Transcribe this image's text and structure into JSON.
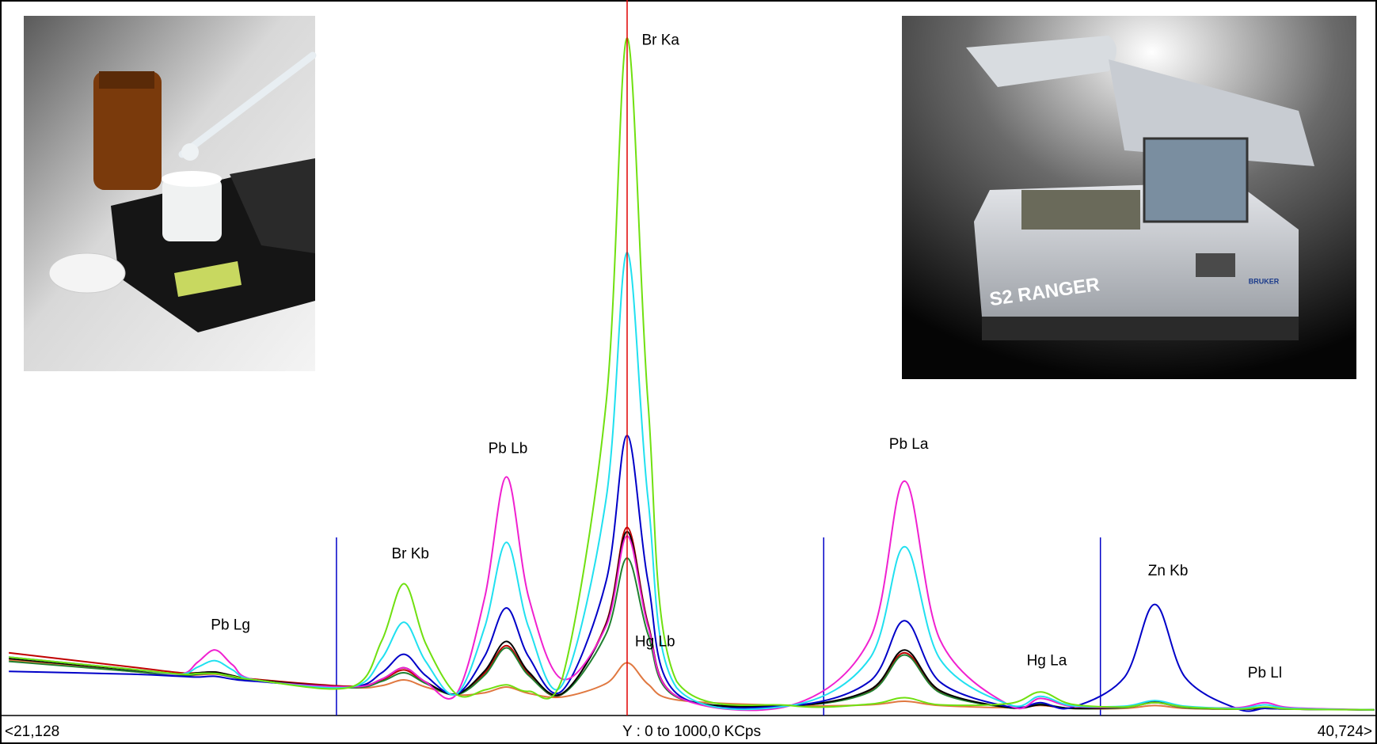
{
  "chart_data": {
    "type": "line",
    "x": [
      21.13,
      22.89,
      23.59,
      23.84,
      24.09,
      24.34,
      24.66,
      26.04,
      26.48,
      26.8,
      27.11,
      27.55,
      27.96,
      28.27,
      28.59,
      29.07,
      29.7,
      30.0,
      30.3,
      30.71,
      32.34,
      33.48,
      33.98,
      34.49,
      35.49,
      35.93,
      36.37,
      37.13,
      37.57,
      38.01,
      38.77,
      39.15,
      39.53,
      40.72
    ],
    "series": [
      {
        "color": "#e07840",
        "values": [
          78,
          62,
          56,
          57,
          58,
          54,
          49,
          39,
          42,
          50,
          40,
          29,
          32,
          40,
          31,
          26,
          45,
          74,
          44,
          22,
          14,
          15,
          20,
          14,
          11,
          14,
          10,
          10,
          14,
          10,
          9,
          11,
          9,
          8
        ]
      },
      {
        "color": "#c00000",
        "values": [
          88,
          68,
          60,
          60,
          61,
          56,
          51,
          41,
          50,
          64,
          46,
          30,
          60,
          98,
          58,
          30,
          130,
          264,
          129,
          27,
          14,
          34,
          88,
          33,
          11,
          15,
          10,
          12,
          20,
          12,
          9,
          10,
          9,
          8
        ]
      },
      {
        "color": "#208030",
        "values": [
          76,
          62,
          56,
          58,
          59,
          54,
          49,
          39,
          48,
          60,
          45,
          29,
          57,
          95,
          56,
          30,
          115,
          221,
          114,
          26,
          14,
          33,
          85,
          32,
          11,
          16,
          10,
          11,
          18,
          11,
          9,
          10,
          9,
          8
        ]
      },
      {
        "color": "#000000",
        "values": [
          80,
          64,
          58,
          60,
          61,
          56,
          50,
          40,
          51,
          67,
          47,
          30,
          63,
          104,
          61,
          31,
          128,
          258,
          127,
          27,
          14,
          36,
          92,
          35,
          11,
          15,
          10,
          12,
          20,
          12,
          9,
          10,
          9,
          8
        ]
      },
      {
        "color": "#0000c8",
        "values": [
          62,
          58,
          55,
          54,
          55,
          51,
          48,
          40,
          60,
          86,
          56,
          30,
          84,
          151,
          82,
          35,
          189,
          393,
          188,
          31,
          14,
          48,
          133,
          47,
          12,
          18,
          11,
          53,
          156,
          53,
          9,
          10,
          9,
          8
        ]
      },
      {
        "color": "#f020d0",
        "values": [
          82,
          65,
          58,
          75,
          92,
          71,
          50,
          40,
          51,
          67,
          47,
          30,
          167,
          335,
          165,
          51,
          126,
          252,
          125,
          27,
          14,
          107,
          329,
          106,
          14,
          24,
          13,
          12,
          18,
          12,
          11,
          18,
          11,
          8
        ]
      },
      {
        "color": "#20e0f0",
        "values": [
          82,
          65,
          58,
          68,
          77,
          64,
          50,
          40,
          80,
          131,
          76,
          30,
          125,
          243,
          123,
          43,
          305,
          650,
          304,
          39,
          14,
          80,
          237,
          79,
          15,
          27,
          14,
          13,
          21,
          13,
          10,
          15,
          10,
          8
        ]
      },
      {
        "color": "#70e010",
        "values": [
          82,
          65,
          58,
          59,
          59,
          55,
          50,
          40,
          105,
          185,
          101,
          30,
          36,
          43,
          34,
          52,
          440,
          951,
          439,
          48,
          14,
          16,
          25,
          15,
          17,
          33,
          16,
          12,
          18,
          12,
          9,
          12,
          9,
          8
        ]
      }
    ],
    "xlim": [
      21.128,
      40.724
    ],
    "ylim": [
      0,
      1000
    ],
    "xticks": [
      {
        "value": 21.128,
        "label": "<21,128"
      },
      {
        "value": 40.724,
        "label": "40,724>"
      }
    ],
    "y_range_label": "Y : 0 to 1000,0 KCps",
    "cursor": {
      "x": 30.0,
      "color": "#e00000"
    },
    "region_lines": {
      "x": [
        25.83,
        32.82,
        36.79
      ],
      "color": "#0000c8"
    },
    "annotations": [
      {
        "text": "Pb Lg",
        "x": 24.31,
        "y": 126
      },
      {
        "text": "Br Kb",
        "x": 26.89,
        "y": 226
      },
      {
        "text": "Pb Lb",
        "x": 28.29,
        "y": 374
      },
      {
        "text": "Br Ka",
        "x": 30.48,
        "y": 947
      },
      {
        "text": "Hg Lb",
        "x": 30.4,
        "y": 103
      },
      {
        "text": "Pb La",
        "x": 34.04,
        "y": 380
      },
      {
        "text": "Hg La",
        "x": 36.02,
        "y": 76
      },
      {
        "text": "Zn Kb",
        "x": 37.76,
        "y": 202
      },
      {
        "text": "Pb Ll",
        "x": 39.15,
        "y": 59
      }
    ]
  },
  "photo_labels": [
    "S2 RANGER",
    "BRUKER"
  ]
}
